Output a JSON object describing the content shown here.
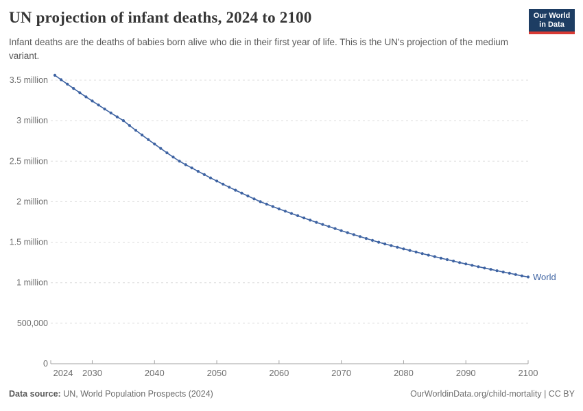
{
  "header": {
    "title": "UN projection of infant deaths, 2024 to 2100",
    "subtitle": "Infant deaths are the deaths of babies born alive who die in their first year of life. This is the UN's projection of the medium variant.",
    "logo": {
      "line1": "Our World",
      "line2": "in Data"
    }
  },
  "footer": {
    "source_label": "Data source:",
    "source_text": " UN, World Population Prospects (2024)",
    "credit": "OurWorldinData.org/child-mortality | CC BY"
  },
  "colors": {
    "line": "#3e63a2",
    "grid": "#dcdcdc",
    "axis": "#a3a3a3",
    "title_text": "#363636",
    "subtitle_text": "#5a5a5a",
    "tick_text": "#6e6e6e",
    "logo_navy": "#1d3d63",
    "logo_red": "#d93a34"
  },
  "chart_data": {
    "type": "line",
    "title": "UN projection of infant deaths, 2024 to 2100",
    "xlabel": "",
    "ylabel": "",
    "units": "millions of infant deaths per year",
    "xlim": [
      2024,
      2100
    ],
    "ylim": [
      0,
      3.56
    ],
    "grid": "horizontal-dashed",
    "legend_position": "end-of-line-label",
    "x": {
      "start": 2024,
      "end": 2100,
      "step": 1
    },
    "x_ticks": [
      2024,
      2030,
      2040,
      2050,
      2060,
      2070,
      2080,
      2090,
      2100
    ],
    "y_ticks": [
      {
        "value": 0,
        "label": "0"
      },
      {
        "value": 0.5,
        "label": "500,000"
      },
      {
        "value": 1,
        "label": "1 million"
      },
      {
        "value": 1.5,
        "label": "1.5 million"
      },
      {
        "value": 2,
        "label": "2 million"
      },
      {
        "value": 2.5,
        "label": "2.5 million"
      },
      {
        "value": 3,
        "label": "3 million"
      },
      {
        "value": 3.5,
        "label": "3.5 million"
      }
    ],
    "series": [
      {
        "name": "World",
        "color": "#3e63a2",
        "marker": "circle",
        "values_unit": "millions",
        "values": [
          3.56,
          3.505,
          3.451,
          3.398,
          3.345,
          3.294,
          3.243,
          3.193,
          3.143,
          3.095,
          3.047,
          3.0,
          2.94,
          2.881,
          2.823,
          2.766,
          2.711,
          2.657,
          2.603,
          2.551,
          2.5,
          2.457,
          2.416,
          2.375,
          2.334,
          2.294,
          2.255,
          2.217,
          2.179,
          2.142,
          2.106,
          2.07,
          2.035,
          2.0,
          1.97,
          1.94,
          1.911,
          1.883,
          1.854,
          1.827,
          1.799,
          1.772,
          1.745,
          1.719,
          1.693,
          1.668,
          1.643,
          1.618,
          1.594,
          1.57,
          1.546,
          1.523,
          1.5,
          1.479,
          1.458,
          1.438,
          1.418,
          1.398,
          1.379,
          1.359,
          1.34,
          1.322,
          1.303,
          1.285,
          1.267,
          1.249,
          1.232,
          1.215,
          1.198,
          1.181,
          1.165,
          1.148,
          1.132,
          1.117,
          1.101,
          1.085,
          1.07
        ]
      }
    ]
  }
}
